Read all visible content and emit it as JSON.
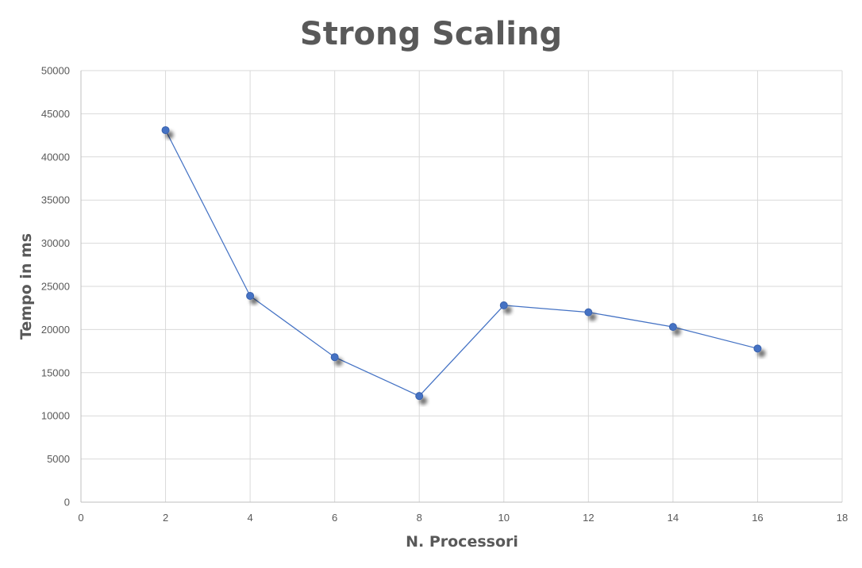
{
  "chart_data": {
    "type": "scatter",
    "title": "Strong Scaling",
    "xlabel": "N. Processori",
    "ylabel": "Tempo in ms",
    "xlim": [
      0,
      18
    ],
    "ylim": [
      0,
      50000
    ],
    "x_ticks": [
      "0",
      "2",
      "4",
      "6",
      "8",
      "10",
      "12",
      "14",
      "16",
      "18"
    ],
    "y_ticks": [
      "0",
      "5000",
      "10000",
      "15000",
      "20000",
      "25000",
      "30000",
      "35000",
      "40000",
      "45000",
      "50000"
    ],
    "grid": true,
    "legend": "none",
    "lines_connect_points": true,
    "series": [
      {
        "color": "#4472c4",
        "x": [
          2,
          4,
          6,
          8,
          10,
          12,
          14,
          16
        ],
        "y": [
          43100,
          23900,
          16800,
          12300,
          22800,
          22000,
          20300,
          17800
        ]
      }
    ]
  }
}
